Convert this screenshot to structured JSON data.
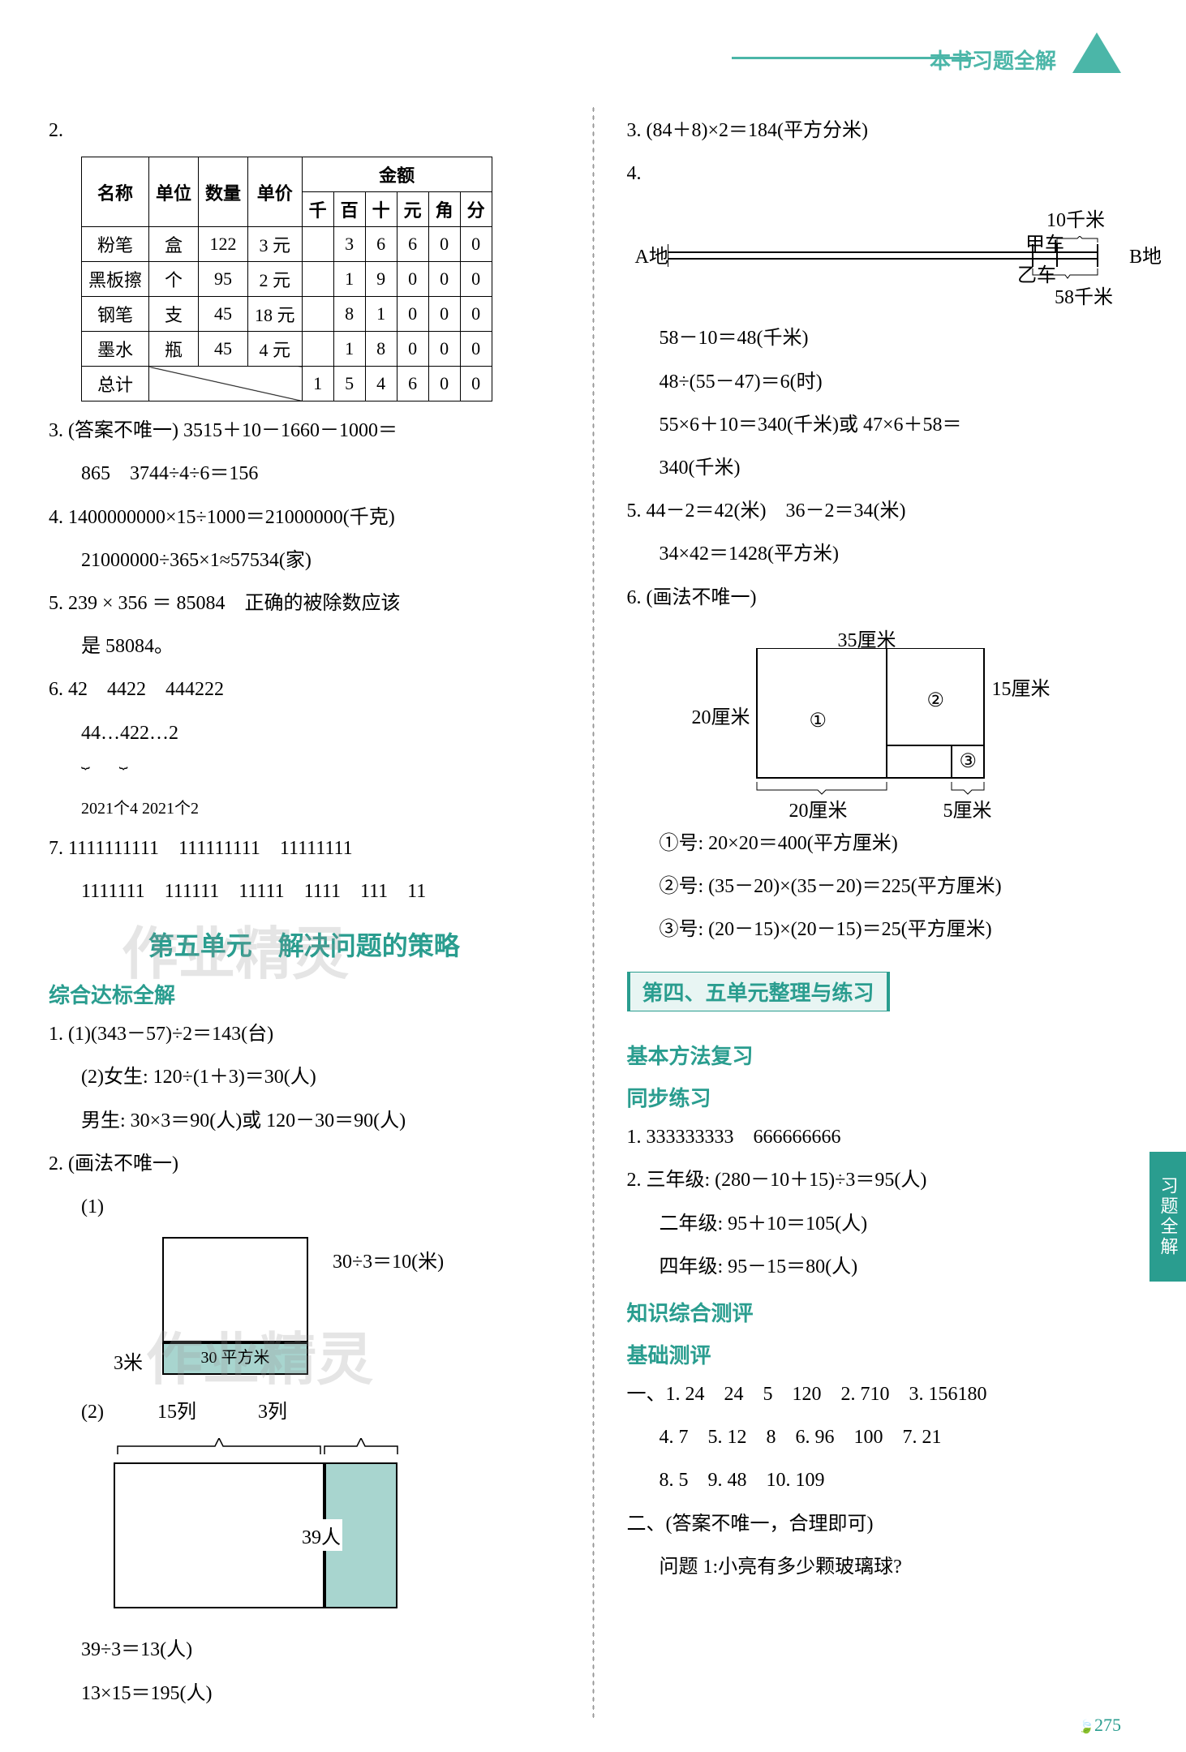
{
  "header": {
    "banner_text": "本书习题全解"
  },
  "table2": {
    "headers": {
      "name": "名称",
      "unit": "单位",
      "qty": "数量",
      "price": "单价",
      "amount": "金额",
      "d1": "千",
      "d2": "百",
      "d3": "十",
      "d4": "元",
      "d5": "角",
      "d6": "分"
    },
    "rows": [
      {
        "name": "粉笔",
        "unit": "盒",
        "qty": "122",
        "price": "3 元",
        "d": [
          "",
          "3",
          "6",
          "6",
          "0",
          "0"
        ]
      },
      {
        "name": "黑板擦",
        "unit": "个",
        "qty": "95",
        "price": "2 元",
        "d": [
          "",
          "1",
          "9",
          "0",
          "0",
          "0"
        ]
      },
      {
        "name": "钢笔",
        "unit": "支",
        "qty": "45",
        "price": "18 元",
        "d": [
          "",
          "8",
          "1",
          "0",
          "0",
          "0"
        ]
      },
      {
        "name": "墨水",
        "unit": "瓶",
        "qty": "45",
        "price": "4 元",
        "d": [
          "",
          "1",
          "8",
          "0",
          "0",
          "0"
        ]
      },
      {
        "name": "总计",
        "unit": "",
        "qty": "",
        "price": "",
        "d": [
          "1",
          "5",
          "4",
          "6",
          "0",
          "0"
        ]
      }
    ]
  },
  "left": {
    "item2_label": "2.",
    "item3": "3. (答案不唯一) 3515＋10－1660－1000＝",
    "item3b": "865　3744÷4÷6＝156",
    "item4": "4. 1400000000×15÷1000＝21000000(千克)",
    "item4b": "21000000÷365×1≈57534(家)",
    "item5": "5. 239 × 356 ＝ 85084　正确的被除数应该",
    "item5b": "是 58084。",
    "item6": "6. 42　4422　444222",
    "item6b": "44…422…2",
    "item6c": "2021个4 2021个2",
    "item7": "7. 1111111111　111111111　11111111",
    "item7b": "1111111　111111　11111　1111　111　11",
    "unit5_title": "第五单元　解决问题的策略",
    "zongheda": "综合达标全解",
    "q1_1": "1. (1)(343－57)÷2＝143(台)",
    "q1_2": "(2)女生: 120÷(1＋3)＝30(人)",
    "q1_2b": "男生: 30×3＝90(人)或 120－30＝90(人)",
    "q2": "2. (画法不唯一)",
    "q2_1": "(1)",
    "q2_1_calc": "30÷3＝10(米)",
    "q2_1_label_3m": "3米",
    "q2_1_label_30": "30 平方米",
    "q2_2": "(2)",
    "q2_2_15": "15列",
    "q2_2_3": "3列",
    "q2_2_39": "39人",
    "q2_end1": "39÷3＝13(人)",
    "q2_end2": "13×15＝195(人)"
  },
  "right": {
    "item3": "3. (84＋8)×2＝184(平方分米)",
    "item4": "4.",
    "diag4": {
      "a": "A地",
      "b": "B地",
      "car1": "甲车",
      "car2": "乙车",
      "d10": "10千米",
      "d58": "58千米"
    },
    "item4_calc1": "58－10＝48(千米)",
    "item4_calc2": "48÷(55－47)＝6(时)",
    "item4_calc3": "55×6＋10＝340(千米)或 47×6＋58＝",
    "item4_calc4": "340(千米)",
    "item5": "5. 44－2＝42(米)　36－2＝34(米)",
    "item5b": "34×42＝1428(平方米)",
    "item6": "6. (画法不唯一)",
    "diag6": {
      "l35": "35厘米",
      "l20left": "20厘米",
      "l15": "15厘米",
      "l20bot": "20厘米",
      "l5": "5厘米",
      "n1": "①",
      "n2": "②",
      "n3": "③"
    },
    "item6_1": "①号: 20×20＝400(平方厘米)",
    "item6_2": "②号: (35－20)×(35－20)＝225(平方厘米)",
    "item6_3": "③号: (20－15)×(20－15)＝25(平方厘米)",
    "unit45_title": "第四、五单元整理与练习",
    "jiben": "基本方法复习",
    "tongbu": "同步练习",
    "r1": "1. 333333333　666666666",
    "r2": "2. 三年级: (280－10＋15)÷3＝95(人)",
    "r2b": "二年级: 95＋10＝105(人)",
    "r2c": "四年级: 95－15＝80(人)",
    "zhishi": "知识综合测评",
    "jichu": "基础测评",
    "yi": "一、1. 24　24　5　120　2. 710　3. 156180",
    "yib": "4. 7　5. 12　8　6. 96　100　7. 21",
    "yic": "8. 5　9. 48　10. 109",
    "er": "二、(答案不唯一，合理即可)",
    "er_q": "问题 1:小亮有多少颗玻璃球?"
  },
  "side_tab": "习题全解",
  "page_num": "275",
  "watermarks": {
    "w1": "作业精灵",
    "w2": "作业精灵"
  }
}
